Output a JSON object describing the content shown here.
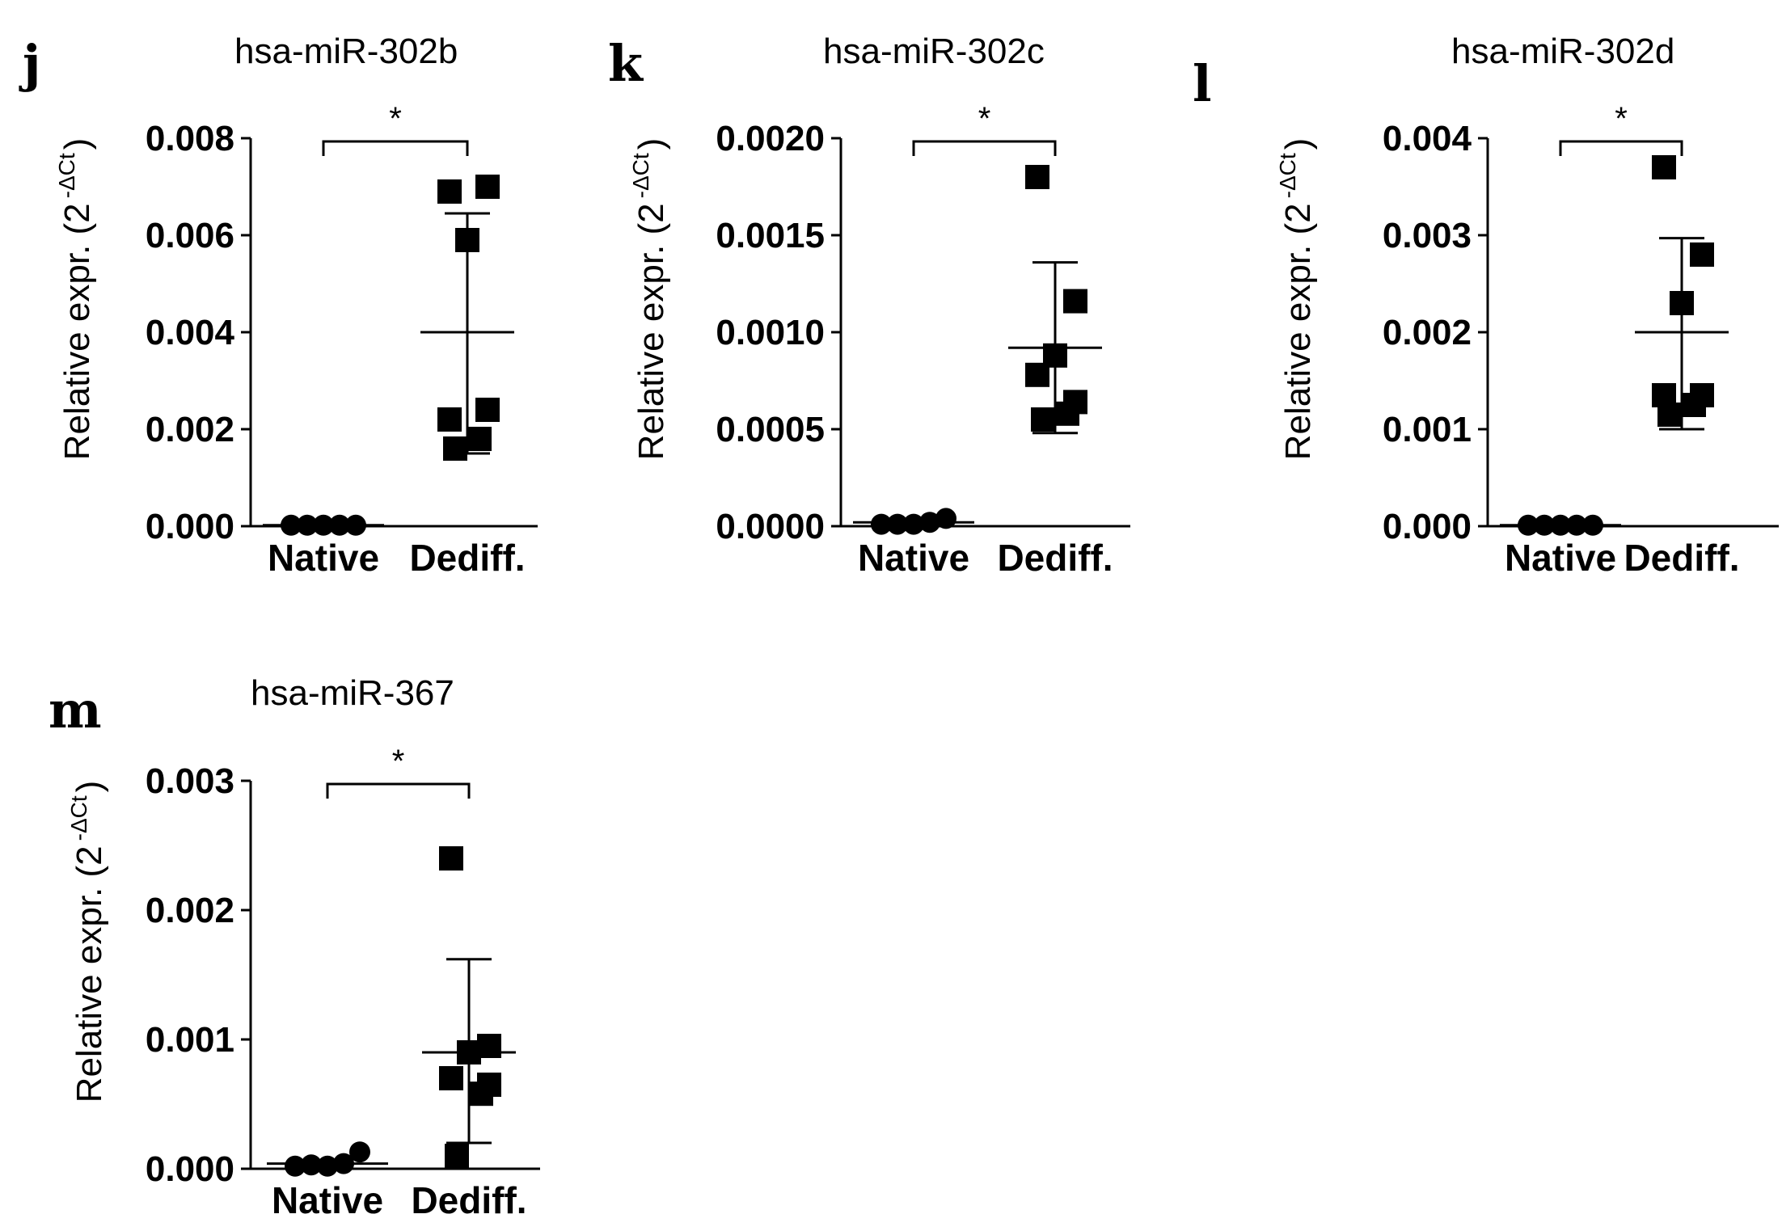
{
  "chart_data": [
    {
      "type": "scatter",
      "panel": "j",
      "title": "hsa-miR-302b",
      "ylabel": "Relative expr. (2",
      "ylabel_sup": "-ΔCt",
      "ylabel_close": ")",
      "ylim": [
        0,
        0.008
      ],
      "yticks": [
        "0.000",
        "0.002",
        "0.004",
        "0.006",
        "0.008"
      ],
      "yticks_values": [
        0,
        0.002,
        0.004,
        0.006,
        0.008
      ],
      "categories": [
        "Native",
        "Dediff."
      ],
      "significance": "*",
      "native": {
        "values": [
          2e-05,
          2e-05,
          2e-05,
          2e-05,
          2e-05
        ],
        "mean": 2e-05
      },
      "dediff": {
        "values": [
          0.0069,
          0.007,
          0.0059,
          0.0022,
          0.0024,
          0.0018,
          0.0016
        ],
        "mean": 0.004,
        "sd_low": 0.0015,
        "sd_high": 0.00645
      }
    },
    {
      "type": "scatter",
      "panel": "k",
      "title": "hsa-miR-302c",
      "ylabel": "Relative expr. (2",
      "ylabel_sup": "-ΔCt",
      "ylabel_close": ")",
      "ylim": [
        0,
        0.002
      ],
      "yticks": [
        "0.0000",
        "0.0005",
        "0.0010",
        "0.0015",
        "0.0020"
      ],
      "yticks_values": [
        0,
        0.0005,
        0.001,
        0.0015,
        0.002
      ],
      "categories": [
        "Native",
        "Dediff."
      ],
      "significance": "*",
      "native": {
        "values": [
          1e-05,
          1e-05,
          1e-05,
          2e-05,
          4e-05
        ],
        "mean": 2e-05
      },
      "dediff": {
        "values": [
          0.0018,
          0.00116,
          0.00088,
          0.00078,
          0.00064,
          0.00058,
          0.00055
        ],
        "mean": 0.00092,
        "sd_low": 0.00048,
        "sd_high": 0.00136
      }
    },
    {
      "type": "scatter",
      "panel": "l",
      "title": "hsa-miR-302d",
      "ylabel": "Relative expr. (2",
      "ylabel_sup": "-ΔCt",
      "ylabel_close": ")",
      "ylim": [
        0,
        0.004
      ],
      "yticks": [
        "0.000",
        "0.001",
        "0.002",
        "0.003",
        "0.004"
      ],
      "yticks_values": [
        0,
        0.001,
        0.002,
        0.003,
        0.004
      ],
      "categories": [
        "Native",
        "Dediff."
      ],
      "significance": "*",
      "native": {
        "values": [
          1e-05,
          1e-05,
          1e-05,
          1e-05,
          1e-05
        ],
        "mean": 1e-05
      },
      "dediff": {
        "values": [
          0.0037,
          0.0028,
          0.0023,
          0.00135,
          0.00135,
          0.00125,
          0.00115
        ],
        "mean": 0.002,
        "sd_low": 0.001,
        "sd_high": 0.00297
      }
    },
    {
      "type": "scatter",
      "panel": "m",
      "title": "hsa-miR-367",
      "ylabel": "Relative expr. (2",
      "ylabel_sup": "-ΔCt",
      "ylabel_close": ")",
      "ylim": [
        0,
        0.003
      ],
      "yticks": [
        "0.000",
        "0.001",
        "0.002",
        "0.003"
      ],
      "yticks_values": [
        0,
        0.001,
        0.002,
        0.003
      ],
      "categories": [
        "Native",
        "Dediff."
      ],
      "significance": "*",
      "native": {
        "values": [
          2e-05,
          3e-05,
          2e-05,
          4e-05,
          0.00013
        ],
        "mean": 4e-05
      },
      "dediff": {
        "values": [
          0.0024,
          0.00095,
          0.0009,
          0.0007,
          0.00065,
          0.00058,
          0.0001
        ],
        "mean": 0.0009,
        "sd_low": 0.0002,
        "sd_high": 0.00162
      }
    }
  ]
}
